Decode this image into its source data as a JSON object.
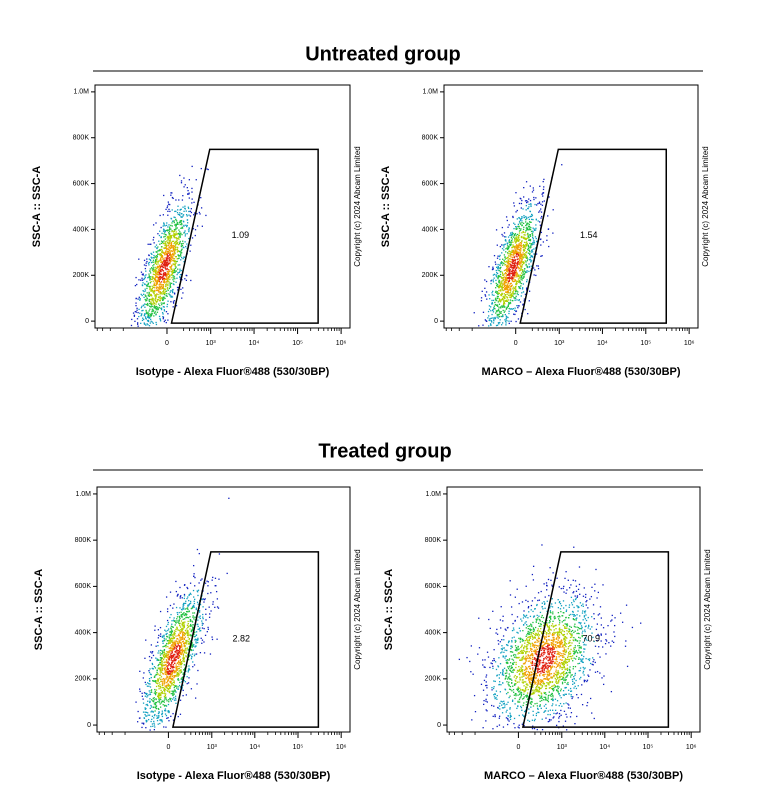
{
  "sections": [
    {
      "title": "Untreated group"
    },
    {
      "title": "Treated group"
    }
  ],
  "chart_data": [
    {
      "type": "scatter",
      "y_label": "SSC-A :: SSC-A",
      "x_label": "Isotype - Alexa Fluor®488 (530/30BP)",
      "watermark": "Copyright (c) 2024 Abcam Limited",
      "gate_percent": 1.09,
      "x_scale": "biexponential",
      "xlim": [
        -4500,
        1600000
      ],
      "xticks": [
        0,
        {
          "value": 1000,
          "label": "10³"
        },
        {
          "value": 10000,
          "label": "10⁴"
        },
        {
          "value": 100000,
          "label": "10⁵"
        },
        {
          "value": 1000000,
          "label": "10⁶"
        }
      ],
      "ylim": [
        -30000,
        1030000
      ],
      "yticks": [
        0,
        {
          "value": 200000,
          "label": "200K"
        },
        {
          "value": 400000,
          "label": "400K"
        },
        {
          "value": 600000,
          "label": "600K"
        },
        {
          "value": 800000,
          "label": "800K"
        },
        {
          "value": 1000000,
          "label": "1.0M"
        }
      ]
    },
    {
      "type": "scatter",
      "y_label": "SSC-A :: SSC-A",
      "x_label": "MARCO – Alexa Fluor®488 (530/30BP)",
      "watermark": "Copyright (c) 2024 Abcam Limited",
      "gate_percent": 1.54,
      "x_scale": "biexponential",
      "xlim": [
        -4500,
        1600000
      ],
      "xticks": [
        0,
        {
          "value": 1000,
          "label": "10³"
        },
        {
          "value": 10000,
          "label": "10⁴"
        },
        {
          "value": 100000,
          "label": "10⁵"
        },
        {
          "value": 1000000,
          "label": "10⁶"
        }
      ],
      "ylim": [
        -30000,
        1030000
      ],
      "yticks": [
        0,
        {
          "value": 200000,
          "label": "200K"
        },
        {
          "value": 400000,
          "label": "400K"
        },
        {
          "value": 600000,
          "label": "600K"
        },
        {
          "value": 800000,
          "label": "800K"
        },
        {
          "value": 1000000,
          "label": "1.0M"
        }
      ]
    },
    {
      "type": "scatter",
      "y_label": "SSC-A :: SSC-A",
      "x_label": "Isotype - Alexa Fluor®488 (530/30BP)",
      "watermark": "Copyright (c) 2024 Abcam Limited",
      "gate_percent": 2.82,
      "x_scale": "biexponential",
      "xlim": [
        -4500,
        1600000
      ],
      "xticks": [
        0,
        {
          "value": 1000,
          "label": "10³"
        },
        {
          "value": 10000,
          "label": "10⁴"
        },
        {
          "value": 100000,
          "label": "10⁵"
        },
        {
          "value": 1000000,
          "label": "10⁶"
        }
      ],
      "ylim": [
        -30000,
        1030000
      ],
      "yticks": [
        0,
        {
          "value": 200000,
          "label": "200K"
        },
        {
          "value": 400000,
          "label": "400K"
        },
        {
          "value": 600000,
          "label": "600K"
        },
        {
          "value": 800000,
          "label": "800K"
        },
        {
          "value": 1000000,
          "label": "1.0M"
        }
      ]
    },
    {
      "type": "scatter",
      "y_label": "SSC-A :: SSC-A",
      "x_label": "MARCO – Alexa Fluor®488 (530/30BP)",
      "watermark": "Copyright (c) 2024 Abcam Limited",
      "gate_percent": 70.9,
      "x_scale": "biexponential",
      "xlim": [
        -4500,
        1600000
      ],
      "xticks": [
        0,
        {
          "value": 1000,
          "label": "10³"
        },
        {
          "value": 10000,
          "label": "10⁴"
        },
        {
          "value": 100000,
          "label": "10⁵"
        },
        {
          "value": 1000000,
          "label": "10⁶"
        }
      ],
      "ylim": [
        -30000,
        1030000
      ],
      "yticks": [
        0,
        {
          "value": 200000,
          "label": "200K"
        },
        {
          "value": 400000,
          "label": "400K"
        },
        {
          "value": 600000,
          "label": "600K"
        },
        {
          "value": 800000,
          "label": "800K"
        },
        {
          "value": 1000000,
          "label": "1.0M"
        }
      ]
    }
  ]
}
